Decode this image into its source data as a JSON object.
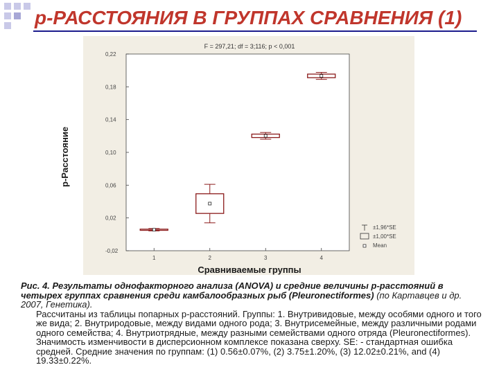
{
  "slide": {
    "title": "p-РАССТОЯНИЯ В ГРУППАХ СРАВНЕНИЯ (1)"
  },
  "chart": {
    "stats_line": "F = 297,21; df = 3;116; p < 0,001",
    "ylabel": "p-Расстояние",
    "xlabel": "Сравниваемые группы",
    "legend": [
      "±1,96*SE",
      "±1,00*SE",
      "Mean"
    ]
  },
  "chart_data": {
    "type": "box",
    "title": "F = 297,21; df = 3;116; p < 0,001",
    "xlabel": "Сравниваемые группы",
    "ylabel": "p-Расстояние",
    "categories": [
      "1",
      "2",
      "3",
      "4"
    ],
    "y_ticks": [
      "0,22",
      "0,18",
      "0,14",
      "0,10",
      "0,06",
      "0,02",
      "-0,02"
    ],
    "ylim": [
      -0.02,
      0.22
    ],
    "series": [
      {
        "name": "Mean",
        "values": [
          0.0056,
          0.0375,
          0.1202,
          0.1933
        ]
      },
      {
        "name": "±1,00*SE",
        "values": [
          0.0007,
          0.012,
          0.0021,
          0.0022
        ]
      },
      {
        "name": "±1,96*SE",
        "values": [
          0.0014,
          0.0235,
          0.0041,
          0.0043
        ]
      }
    ],
    "legend_position": "bottom-right",
    "grid": false
  },
  "caption": {
    "main": "Рис. 4. Результаты однофакторного анализа (ANOVA) и средние величины p-расстояний в четырех группах сравнения среди камбалообразных рыб (Pleuronectiformes)",
    "source": " (по Картавцев и др. 2007, Генетика).",
    "body": "Рассчитаны из таблицы попарных p-расстояний. Группы: 1. Внутривидовые, между особями одного и того же вида; 2. Внутриродовые, между видами одного рода; 3. Внутрисемейные, между различными родами одного семейства; 4. Внутриотрядные, между разными семействами одного отряда (Pleuronectiformes). Значимость изменчивости в дисперсионном комплексе показана сверху. SE: - стандартная ошибка средней. Средние значения по группам: (1) 0.56±0.07%, (2) 3.75±1.20%, (3) 12.02±0.21%, and (4) 19.33±0.22%."
  },
  "colors": {
    "title": "#c0362c",
    "accent": "#1a1a8c",
    "box": "#8b1a1a",
    "panel": "#f2eee4"
  }
}
